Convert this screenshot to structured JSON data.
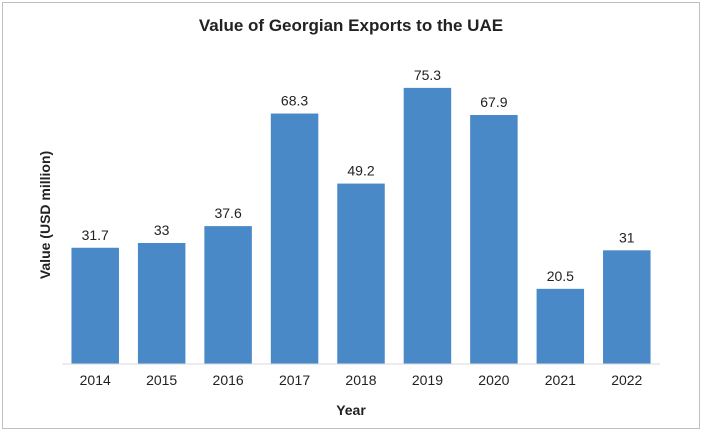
{
  "chart_data": {
    "type": "bar",
    "title": "Value of Georgian Exports to the UAE",
    "xlabel": "Year",
    "ylabel": "Value (USD million)",
    "categories": [
      "2014",
      "2015",
      "2016",
      "2017",
      "2018",
      "2019",
      "2020",
      "2021",
      "2022"
    ],
    "values": [
      31.7,
      33,
      37.6,
      68.3,
      49.2,
      75.3,
      67.9,
      20.5,
      31
    ],
    "data_labels": [
      "31.7",
      "33",
      "37.6",
      "68.3",
      "49.2",
      "75.3",
      "67.9",
      "20.5",
      "31"
    ],
    "ylim": [
      0,
      80
    ],
    "grid": false,
    "legend": "none",
    "bar_color": "#4a89c8"
  }
}
